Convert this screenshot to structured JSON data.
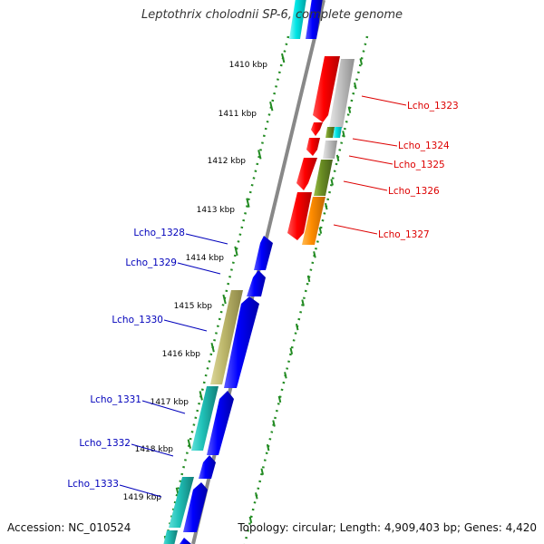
{
  "title": "Leptothrix cholodnii SP-6, complete genome",
  "footer": {
    "accession": "Accession: NC_010524",
    "topology": "Topology: circular; Length: 4,909,403 bp; Genes: 4,420"
  },
  "scale_labels": [
    "1410 kbp",
    "1411 kbp",
    "1412 kbp",
    "1413 kbp",
    "1414 kbp",
    "1415 kbp",
    "1416 kbp",
    "1417 kbp",
    "1418 kbp",
    "1419 kbp"
  ],
  "genes_forward": [
    "Lcho_1323",
    "Lcho_1324",
    "Lcho_1325",
    "Lcho_1326",
    "Lcho_1327"
  ],
  "genes_reverse": [
    "Lcho_1328",
    "Lcho_1329",
    "Lcho_1330",
    "Lcho_1331",
    "Lcho_1332",
    "Lcho_1333"
  ],
  "colors": {
    "forward_label": "#dd0000",
    "reverse_label": "#0000bb",
    "scale_dots": "#228b22",
    "backbone": "#888888",
    "red": "#ff0000",
    "grey": "#c0c0c0",
    "cyan": "#00e5e5",
    "olive": "#6b8e23",
    "orange": "#ff8c00",
    "blue": "#0000ff",
    "khaki": "#bdb76b",
    "teal": "#20b2aa"
  }
}
